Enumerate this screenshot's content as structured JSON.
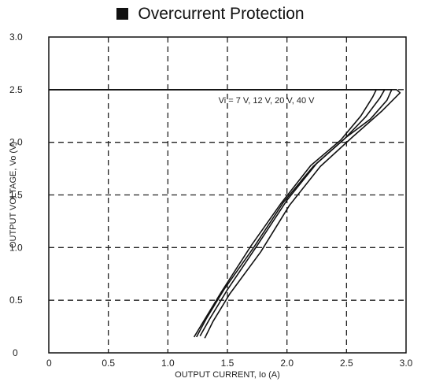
{
  "chart_data": {
    "type": "line",
    "title": "Overcurrent Protection",
    "xlabel": "OUTPUT CURRENT, Io (A)",
    "ylabel": "OUTPUT VOLTAGE, Vo (V)",
    "xlim": [
      0,
      3.0
    ],
    "ylim": [
      0,
      3.0
    ],
    "x_ticks": [
      "0",
      "0.5",
      "1.0",
      "1.5",
      "2.0",
      "2.5",
      "3.0"
    ],
    "y_ticks": [
      "0",
      "0.5",
      "1.0",
      "1.5",
      "2.0",
      "2.5",
      "3.0"
    ],
    "grid": "dashed",
    "annotation": "Vi = 7 V, 12 V, 20 V, 40 V",
    "series": [
      {
        "x": [
          0,
          2.75,
          2.72,
          2.62,
          2.45,
          2.2,
          1.95,
          1.7,
          1.45,
          1.3,
          1.22
        ],
        "y": [
          2.5,
          2.5,
          2.43,
          2.25,
          2.02,
          1.78,
          1.42,
          1.02,
          0.58,
          0.3,
          0.15
        ]
      },
      {
        "x": [
          0,
          2.82,
          2.78,
          2.66,
          2.48,
          2.22,
          1.97,
          1.72,
          1.47,
          1.32,
          1.24
        ],
        "y": [
          2.5,
          2.5,
          2.42,
          2.24,
          2.03,
          1.77,
          1.43,
          1.0,
          0.6,
          0.32,
          0.15
        ]
      },
      {
        "x": [
          0,
          2.88,
          2.84,
          2.7,
          2.5,
          2.25,
          2.0,
          1.75,
          1.5,
          1.35,
          1.27
        ],
        "y": [
          2.5,
          2.5,
          2.4,
          2.22,
          2.05,
          1.8,
          1.45,
          1.02,
          0.6,
          0.32,
          0.16
        ]
      },
      {
        "x": [
          0,
          2.92,
          2.95,
          2.8,
          2.55,
          2.28,
          2.02,
          1.78,
          1.52,
          1.38,
          1.31
        ],
        "y": [
          2.5,
          2.5,
          2.47,
          2.3,
          2.05,
          1.77,
          1.4,
          0.96,
          0.56,
          0.3,
          0.14
        ]
      }
    ]
  }
}
